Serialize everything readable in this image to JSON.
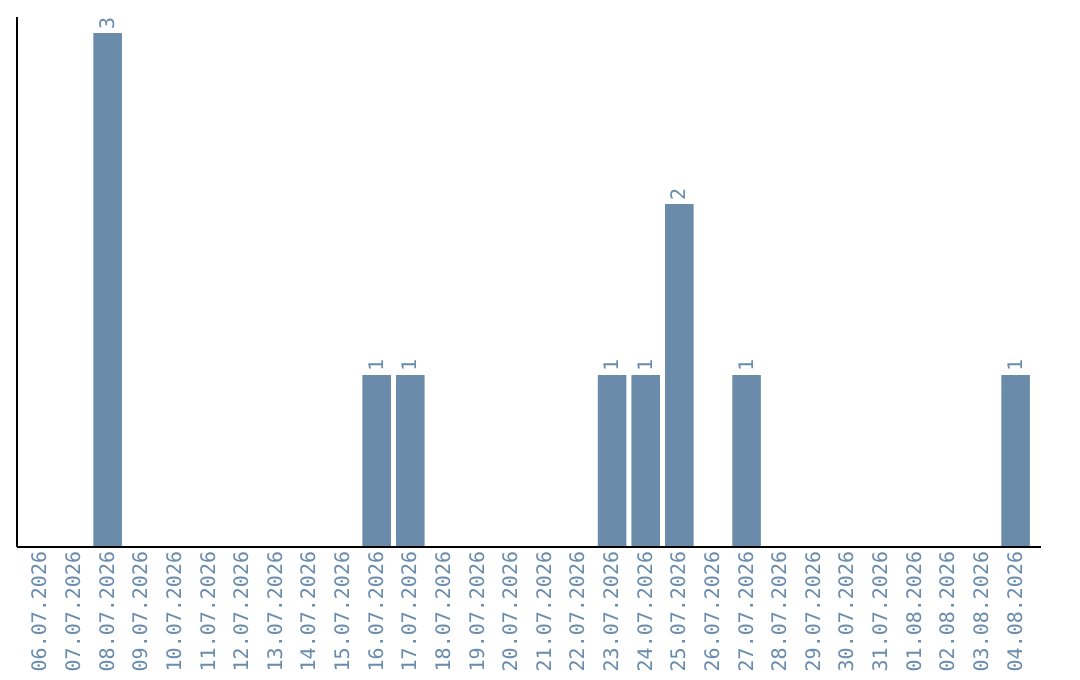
{
  "chart_data": {
    "type": "bar",
    "categories": [
      "06.07.2026",
      "07.07.2026",
      "08.07.2026",
      "09.07.2026",
      "10.07.2026",
      "11.07.2026",
      "12.07.2026",
      "13.07.2026",
      "14.07.2026",
      "15.07.2026",
      "16.07.2026",
      "17.07.2026",
      "18.07.2026",
      "19.07.2026",
      "20.07.2026",
      "21.07.2026",
      "22.07.2026",
      "23.07.2026",
      "24.07.2026",
      "25.07.2026",
      "26.07.2026",
      "27.07.2026",
      "28.07.2026",
      "29.07.2026",
      "30.07.2026",
      "31.07.2026",
      "01.08.2026",
      "02.08.2026",
      "03.08.2026",
      "04.08.2026"
    ],
    "values": [
      0,
      0,
      3,
      0,
      0,
      0,
      0,
      0,
      0,
      0,
      1,
      1,
      0,
      0,
      0,
      0,
      0,
      1,
      1,
      2,
      0,
      1,
      0,
      0,
      0,
      0,
      0,
      0,
      0,
      1
    ],
    "value_labels": [
      null,
      null,
      "3",
      null,
      null,
      null,
      null,
      null,
      null,
      null,
      "1",
      "1",
      null,
      null,
      null,
      null,
      null,
      "1",
      "1",
      "2",
      null,
      "1",
      null,
      null,
      null,
      null,
      null,
      null,
      null,
      "1"
    ],
    "color": "#6a8caa",
    "ylim": [
      0,
      3.1
    ],
    "tick_labels": "x",
    "grid": false
  }
}
